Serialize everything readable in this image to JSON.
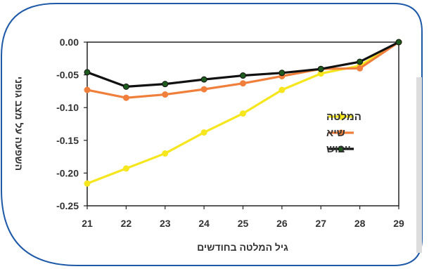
{
  "chart_data": {
    "type": "line",
    "title": "",
    "xlabel": "גיל המלטה בחודשים",
    "ylabel": "השפעה על מצב גופני",
    "x": [
      21,
      22,
      23,
      24,
      25,
      26,
      27,
      28,
      29
    ],
    "xlim": [
      21,
      29
    ],
    "ylim": [
      -0.25,
      0.0
    ],
    "x_ticks": [
      "21",
      "22",
      "23",
      "24",
      "25",
      "26",
      "27",
      "28",
      "29"
    ],
    "y_ticks": [
      {
        "value": 0.0,
        "label": "0.00"
      },
      {
        "value": -0.05,
        "label": "-0.05"
      },
      {
        "value": -0.1,
        "label": "-0.10"
      },
      {
        "value": -0.15,
        "label": "-0.15"
      },
      {
        "value": -0.2,
        "label": "-0.20"
      },
      {
        "value": -0.25,
        "label": "-0.25"
      }
    ],
    "grid": false,
    "legend_position": "right-middle",
    "series": [
      {
        "name": "המלטה",
        "color": "#f5e61e",
        "values": [
          -0.216,
          -0.193,
          -0.17,
          -0.138,
          -0.109,
          -0.073,
          -0.048,
          -0.036,
          0.0
        ]
      },
      {
        "name": "שיא",
        "color": "#f07f3c",
        "values": [
          -0.073,
          -0.085,
          -0.08,
          -0.072,
          -0.063,
          -0.052,
          -0.041,
          -0.04,
          0.0
        ]
      },
      {
        "name": "ייבוש",
        "color": "#111111",
        "marker_color": "#1f5a1f",
        "values": [
          -0.046,
          -0.068,
          -0.064,
          -0.057,
          -0.051,
          -0.047,
          -0.041,
          -0.03,
          0.0
        ]
      }
    ]
  },
  "frame": {
    "border_color": "#1e5aa8",
    "side_bar_color": "#dddddd"
  }
}
